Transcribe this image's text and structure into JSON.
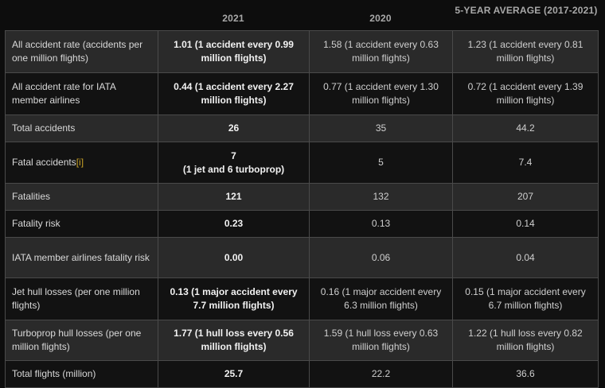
{
  "columns": {
    "year1": "2021",
    "year2": "2020",
    "avg": "5-YEAR AVERAGE (2017-2021)"
  },
  "rows": [
    {
      "label": "All accident rate (accidents per one million flights)",
      "y2021": "1.01 (1 accident every 0.99 million flights)",
      "y2020": "1.58 (1 accident every 0.63 million flights)",
      "avg": "1.23 (1 accident every 0.81 million flights)"
    },
    {
      "label": "All accident rate for IATA member airlines",
      "y2021": "0.44 (1 accident every 2.27 million flights)",
      "y2020": "0.77 (1 accident every 1.30 million flights)",
      "avg": "0.72 (1 accident every 1.39 million flights)"
    },
    {
      "label": "Total accidents",
      "y2021": "26",
      "y2020": "35",
      "avg": "44.2"
    },
    {
      "label": "Fatal accidents",
      "footnote": "[i]",
      "y2021": "7",
      "y2021_sub": "(1 jet and 6 turboprop)",
      "y2020": "5",
      "avg": "7.4"
    },
    {
      "label": "Fatalities",
      "y2021": "121",
      "y2020": "132",
      "avg": "207"
    },
    {
      "label": "Fatality risk",
      "y2021": "0.23",
      "y2020": "0.13",
      "avg": "0.14"
    },
    {
      "label": "IATA member airlines fatality risk",
      "y2021": "0.00",
      "y2020": "0.06",
      "avg": "0.04"
    },
    {
      "label": "Jet hull losses (per one million flights)",
      "y2021": "0.13 (1 major accident every 7.7 million flights)",
      "y2020": "0.16 (1 major accident every 6.3 million flights)",
      "avg": "0.15 (1 major accident every 6.7 million flights)"
    },
    {
      "label": "Turboprop hull losses (per one million flights)",
      "y2021": "1.77 (1 hull loss every 0.56 million flights)",
      "y2020": "1.59 (1 hull loss every 0.63 million flights)",
      "avg": "1.22 (1 hull loss every 0.82 million flights)"
    },
    {
      "label": "Total flights (million)",
      "y2021": "25.7",
      "y2020": "22.2",
      "avg": "36.6"
    }
  ]
}
